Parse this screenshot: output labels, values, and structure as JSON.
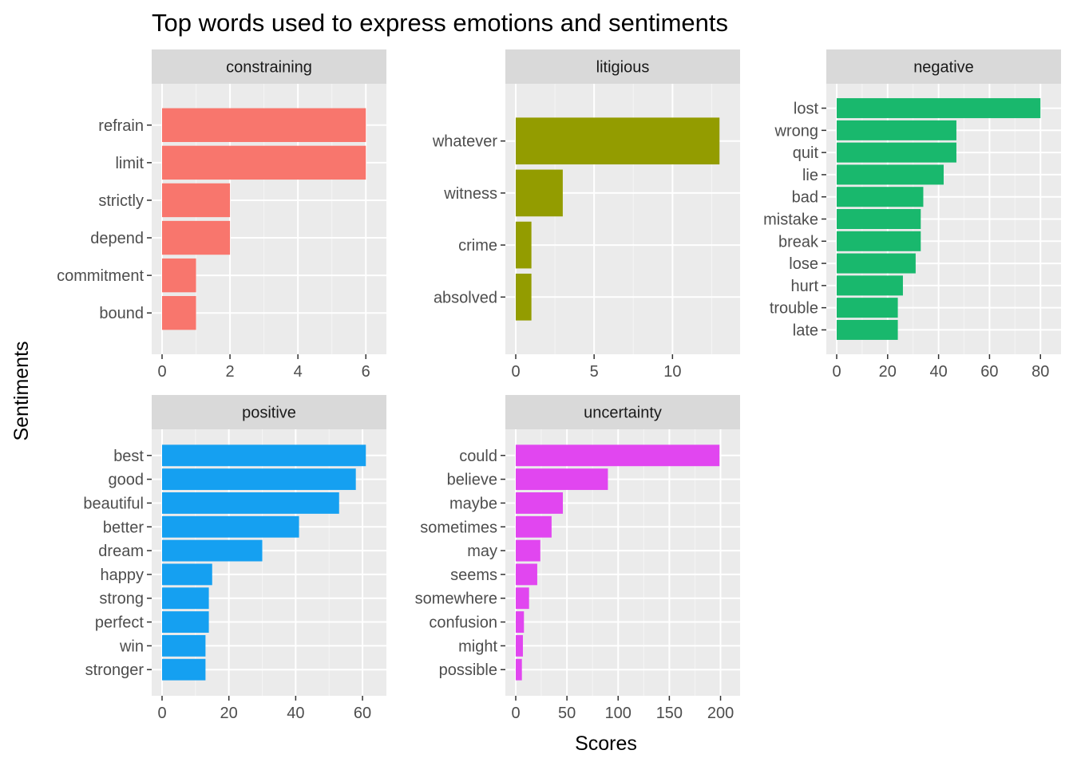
{
  "chart_data": {
    "type": "bar",
    "orientation": "horizontal",
    "title": "Top words used to express emotions and sentiments",
    "xlabel": "Scores",
    "ylabel": "Sentiments",
    "grid": true,
    "legend": "none",
    "panels": [
      {
        "name": "constraining",
        "color": "#F8766D",
        "xlim": [
          0,
          6.3
        ],
        "ticks": [
          0,
          2,
          4,
          6
        ],
        "categories": [
          "refrain",
          "limit",
          "strictly",
          "depend",
          "commitment",
          "bound"
        ],
        "values": [
          6,
          6,
          2,
          2,
          1,
          1
        ]
      },
      {
        "name": "litigious",
        "color": "#939C00",
        "xlim": [
          0,
          13.65
        ],
        "ticks": [
          0,
          5,
          10
        ],
        "categories": [
          "whatever",
          "witness",
          "crime",
          "absolved"
        ],
        "values": [
          13,
          3,
          1,
          1
        ]
      },
      {
        "name": "negative",
        "color": "#19B86D",
        "xlim": [
          0,
          84
        ],
        "ticks": [
          0,
          20,
          40,
          60,
          80
        ],
        "categories": [
          "lost",
          "wrong",
          "quit",
          "lie",
          "bad",
          "mistake",
          "break",
          "lose",
          "hurt",
          "trouble",
          "late"
        ],
        "values": [
          80,
          47,
          47,
          42,
          34,
          33,
          33,
          31,
          26,
          24,
          24
        ]
      },
      {
        "name": "positive",
        "color": "#15A0F1",
        "xlim": [
          0,
          64.05
        ],
        "ticks": [
          0,
          20,
          40,
          60
        ],
        "categories": [
          "best",
          "good",
          "beautiful",
          "better",
          "dream",
          "happy",
          "strong",
          "perfect",
          "win",
          "stronger"
        ],
        "values": [
          61,
          58,
          53,
          41,
          30,
          15,
          14,
          14,
          13,
          13
        ]
      },
      {
        "name": "uncertainty",
        "color": "#E146F0",
        "xlim": [
          0,
          208.95
        ],
        "ticks": [
          0,
          50,
          100,
          150,
          200
        ],
        "categories": [
          "could",
          "believe",
          "maybe",
          "sometimes",
          "may",
          "seems",
          "somewhere",
          "confusion",
          "might",
          "possible"
        ],
        "values": [
          199,
          90,
          46,
          35,
          24,
          21,
          13,
          8,
          7,
          6
        ]
      }
    ]
  }
}
